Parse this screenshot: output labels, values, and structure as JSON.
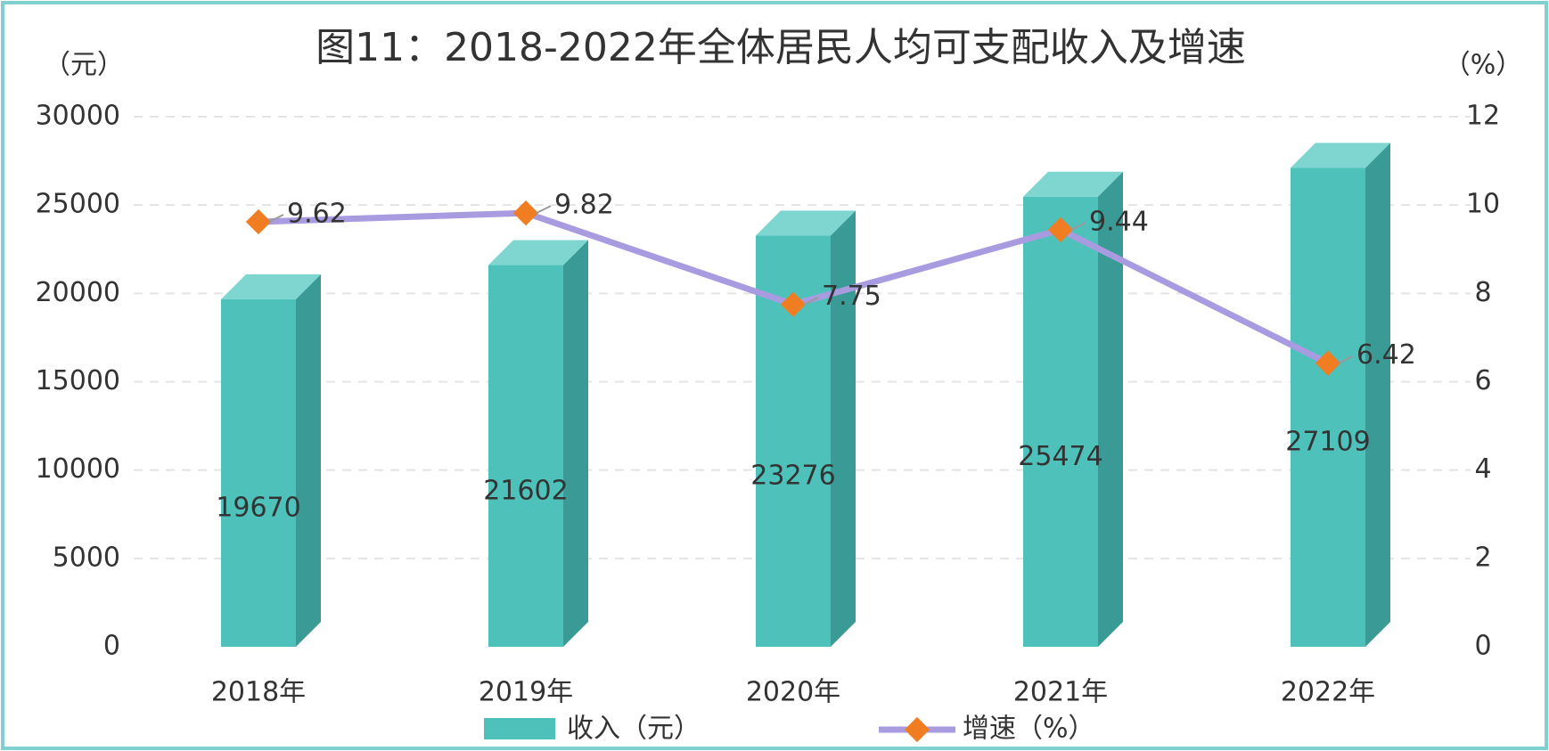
{
  "chart_data": {
    "type": "bar-line",
    "title": "图11：2018-2022年全体居民人均可支配收入及增速",
    "y_label": "（元）",
    "y2_label": "（%）",
    "categories": [
      "2018年",
      "2019年",
      "2020年",
      "2021年",
      "2022年"
    ],
    "series": [
      {
        "name": "收入（元）",
        "color": "#4fc1bb",
        "values": [
          19670,
          21602,
          23276,
          25474,
          27109
        ]
      },
      {
        "name": "增速（%）",
        "axis": "y2",
        "color": "#a99be0",
        "marker_color": "#f07d22",
        "values": [
          9.62,
          9.82,
          7.75,
          9.44,
          6.42
        ]
      }
    ],
    "ylim": [
      0,
      30000
    ],
    "yticks": [
      0,
      5000,
      10000,
      15000,
      20000,
      25000,
      30000
    ],
    "y2lim": [
      0,
      12
    ],
    "y2ticks": [
      0,
      2,
      4,
      6,
      8,
      10,
      12
    ],
    "grid": true,
    "legend": "bottom"
  }
}
